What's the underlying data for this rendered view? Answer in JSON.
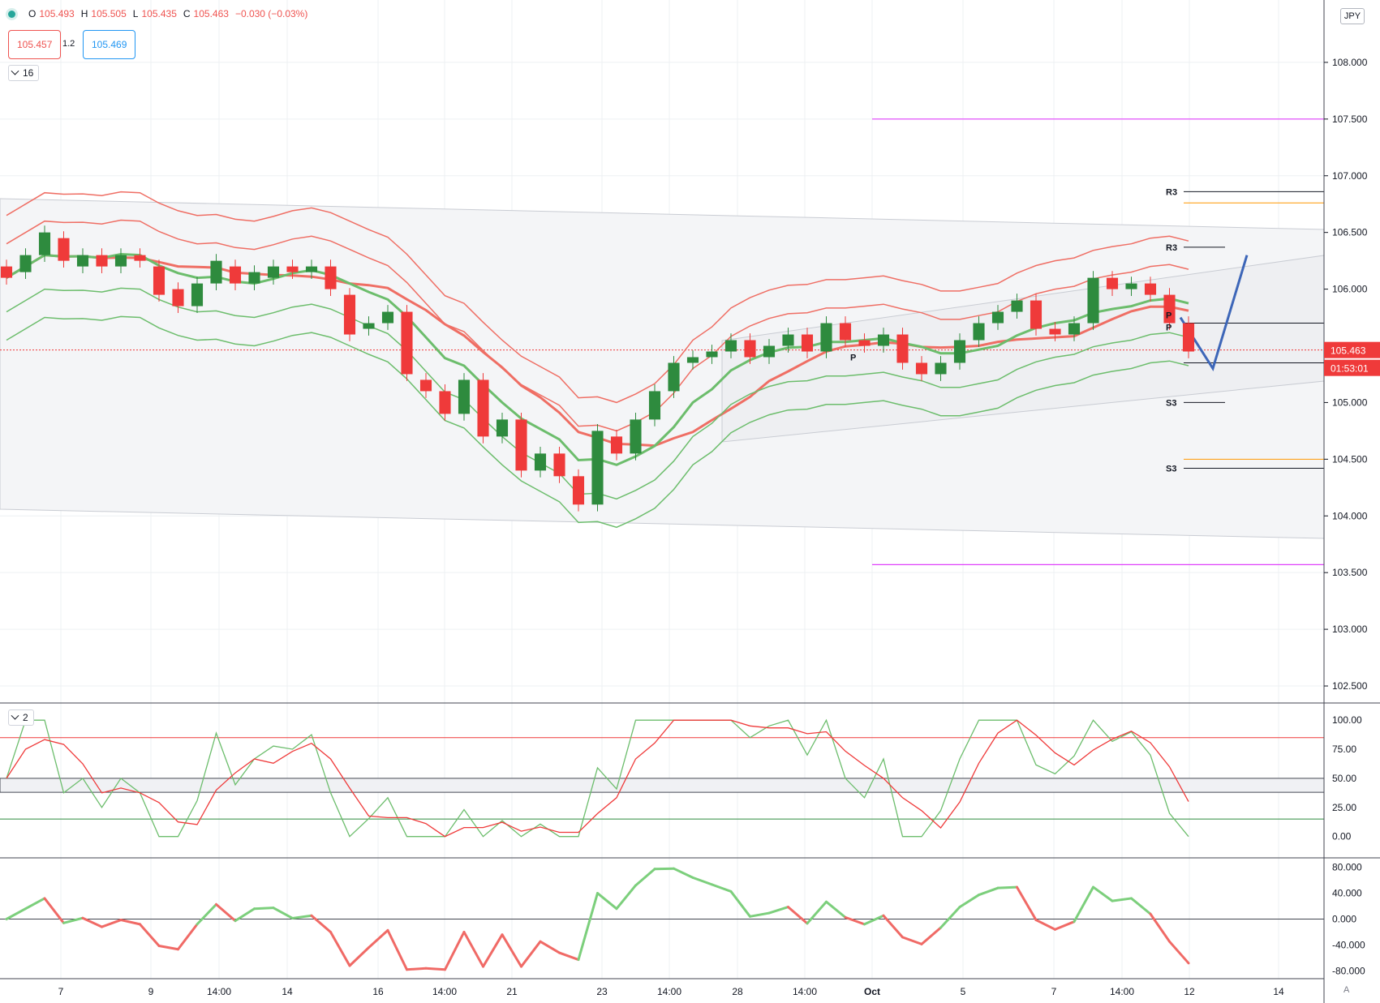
{
  "legend": {
    "o_label": "O",
    "o_value": "105.493",
    "h_label": "H",
    "h_value": "105.505",
    "l_label": "L",
    "l_value": "105.435",
    "c_label": "C",
    "c_value": "105.463",
    "change": "−0.030 (−0.03%)"
  },
  "quote": {
    "bid": "105.457",
    "spread": "1.2",
    "ask": "105.469"
  },
  "indicator_labels": {
    "main": "16",
    "oscillator": "2"
  },
  "currency_badge": "JPY",
  "auto_label": "A",
  "price_badges": {
    "last_price": "105.463",
    "countdown": "01:53:01"
  },
  "colors": {
    "up": "#2e8b3e",
    "down": "#ef3a3a",
    "band_red": "#ef6e64",
    "band_green": "#6cbd6c",
    "magenta": "#e040fb",
    "orange": "#ff9800",
    "projection": "#3d66b8",
    "grid": "#eef0f3"
  },
  "pivot_labels": [
    "R3",
    "R3",
    "P",
    "P",
    "P",
    "S3",
    "S3"
  ],
  "chart_data": [
    {
      "type": "candlestick",
      "y_axis_ticks": [
        "108.000",
        "107.500",
        "107.000",
        "106.500",
        "106.000",
        "105.500",
        "105.000",
        "104.500",
        "104.000",
        "103.500",
        "103.000",
        "102.500"
      ],
      "x_axis_ticks": [
        "7",
        "9",
        "14:00",
        "14",
        "16",
        "14:00",
        "21",
        "23",
        "14:00",
        "28",
        "14:00",
        "Oct",
        "5",
        "7",
        "14:00",
        "12",
        "14"
      ],
      "ylim": [
        102.35,
        108.55
      ],
      "horizontal_levels": {
        "magenta": [
          107.5,
          103.57
        ],
        "r3_upper": 106.86,
        "r3_lower": 106.37,
        "pivot": 105.7,
        "s3_upper": 105.0,
        "s3_lower": 104.42,
        "orange_upper": 106.76,
        "orange_lower": 104.5
      },
      "projection_path_prices": [
        105.75,
        105.3,
        106.3
      ],
      "candles_ohlc_open_close": [
        [
          106.2,
          106.1
        ],
        [
          106.15,
          106.3
        ],
        [
          106.3,
          106.5
        ],
        [
          106.45,
          106.25
        ],
        [
          106.2,
          106.3
        ],
        [
          106.3,
          106.2
        ],
        [
          106.2,
          106.3
        ],
        [
          106.3,
          106.25
        ],
        [
          106.2,
          105.95
        ],
        [
          106.0,
          105.85
        ],
        [
          105.85,
          106.05
        ],
        [
          106.05,
          106.25
        ],
        [
          106.2,
          106.05
        ],
        [
          106.05,
          106.15
        ],
        [
          106.1,
          106.2
        ],
        [
          106.2,
          106.15
        ],
        [
          106.15,
          106.2
        ],
        [
          106.2,
          106.0
        ],
        [
          105.95,
          105.6
        ],
        [
          105.65,
          105.7
        ],
        [
          105.7,
          105.8
        ],
        [
          105.8,
          105.25
        ],
        [
          105.2,
          105.1
        ],
        [
          105.1,
          104.9
        ],
        [
          104.9,
          105.2
        ],
        [
          105.2,
          104.7
        ],
        [
          104.7,
          104.85
        ],
        [
          104.85,
          104.4
        ],
        [
          104.4,
          104.55
        ],
        [
          104.55,
          104.35
        ],
        [
          104.35,
          104.1
        ],
        [
          104.1,
          104.75
        ],
        [
          104.7,
          104.55
        ],
        [
          104.55,
          104.85
        ],
        [
          104.85,
          105.1
        ],
        [
          105.1,
          105.35
        ],
        [
          105.35,
          105.4
        ],
        [
          105.4,
          105.45
        ],
        [
          105.45,
          105.55
        ],
        [
          105.55,
          105.4
        ],
        [
          105.4,
          105.5
        ],
        [
          105.5,
          105.6
        ],
        [
          105.6,
          105.45
        ],
        [
          105.45,
          105.7
        ],
        [
          105.7,
          105.55
        ],
        [
          105.55,
          105.5
        ],
        [
          105.5,
          105.6
        ],
        [
          105.6,
          105.35
        ],
        [
          105.35,
          105.25
        ],
        [
          105.25,
          105.35
        ],
        [
          105.35,
          105.55
        ],
        [
          105.55,
          105.7
        ],
        [
          105.7,
          105.8
        ],
        [
          105.8,
          105.9
        ],
        [
          105.9,
          105.65
        ],
        [
          105.65,
          105.6
        ],
        [
          105.6,
          105.7
        ],
        [
          105.7,
          106.1
        ],
        [
          106.1,
          106.0
        ],
        [
          106.0,
          106.05
        ],
        [
          106.05,
          105.95
        ],
        [
          105.95,
          105.7
        ],
        [
          105.7,
          105.45
        ]
      ],
      "oscillator_1": {
        "ticks": [
          "100.00",
          "75.00",
          "50.00",
          "25.00",
          "0.00"
        ],
        "ylim": [
          -10,
          105
        ],
        "levels": [
          85,
          15,
          50,
          38
        ]
      },
      "oscillator_2": {
        "ticks": [
          "80.000",
          "40.000",
          "0.000",
          "-40.000",
          "-80.000"
        ],
        "ylim": [
          -82,
          82
        ],
        "zero_line": 0
      }
    }
  ]
}
